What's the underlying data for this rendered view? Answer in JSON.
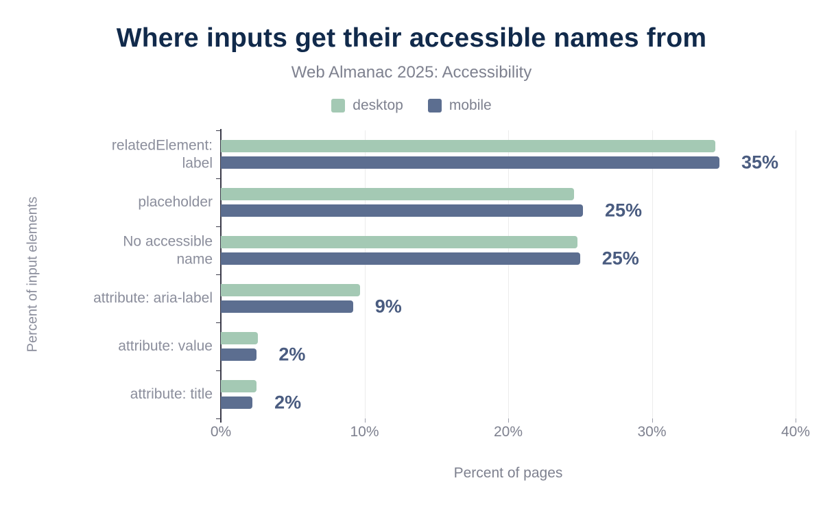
{
  "title": "Where inputs get their accessible names from",
  "subtitle": "Web Almanac 2025: Accessibility",
  "legend": [
    {
      "label": "desktop",
      "color": "#a4c9b4"
    },
    {
      "label": "mobile",
      "color": "#5c6e90"
    }
  ],
  "colors": {
    "title": "#112a4b",
    "muted_text": "#7e818f",
    "category_text": "#8b8e9c",
    "value_label": "#4a5c80",
    "axis": "#3b3b4a",
    "gridline": "#ececec",
    "background": "#ffffff"
  },
  "chart_data": {
    "type": "bar",
    "orientation": "horizontal",
    "title": "Where inputs get their accessible names from",
    "subtitle": "Web Almanac 2025: Accessibility",
    "categories": [
      "relatedElement: label",
      "placeholder",
      "No accessible name",
      "attribute: aria-label",
      "attribute: value",
      "attribute: title"
    ],
    "category_display": [
      "relatedElement:\nlabel",
      "placeholder",
      "No accessible\nname",
      "attribute: aria-label",
      "attribute: value",
      "attribute: title"
    ],
    "series": [
      {
        "name": "desktop",
        "color": "#a4c9b4",
        "values": [
          34.4,
          24.6,
          24.8,
          9.7,
          2.6,
          2.5
        ]
      },
      {
        "name": "mobile",
        "color": "#5c6e90",
        "values": [
          34.7,
          25.2,
          25.0,
          9.2,
          2.5,
          2.2
        ]
      }
    ],
    "value_labels": [
      "35%",
      "25%",
      "25%",
      "9%",
      "2%",
      "2%"
    ],
    "xlabel": "Percent of pages",
    "ylabel": "Percent of input elements",
    "xlim": [
      0,
      40
    ],
    "x_ticks": [
      0,
      10,
      20,
      30,
      40
    ],
    "x_tick_labels": [
      "0%",
      "10%",
      "20%",
      "30%",
      "40%"
    ],
    "grid": "vertical",
    "legend_position": "top"
  }
}
